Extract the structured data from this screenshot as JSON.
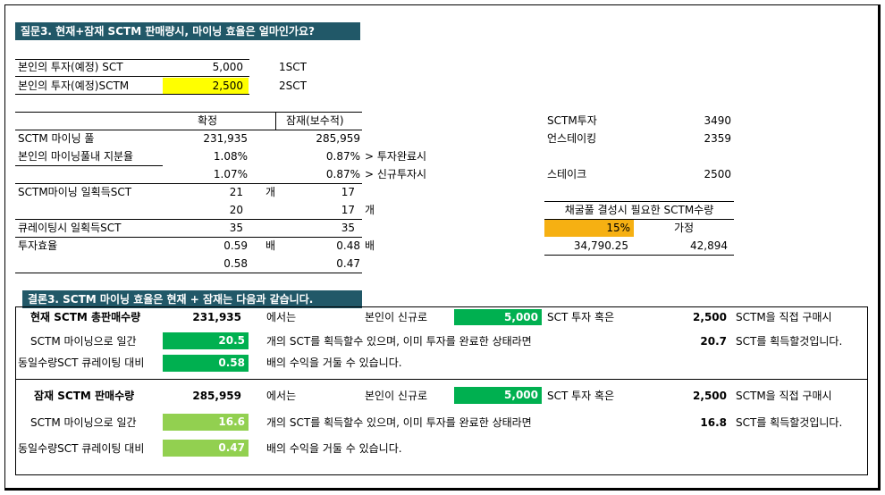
{
  "question": {
    "title": "질문3. 현재+잠재 SCTM 판매량시, 마이닝 효율은 얼마인가요?"
  },
  "investment": {
    "row1": {
      "label": "본인의 투자(예정) SCT",
      "value": "5,000",
      "unit": "1SCT"
    },
    "row2": {
      "label": "본인의 투자(예정)SCTM",
      "value": "2,500",
      "unit": "2SCT"
    }
  },
  "table": {
    "header_confirmed": "확정",
    "header_potential": "잠재(보수적)",
    "rows": {
      "pool": {
        "label": "SCTM 마이닝 풀",
        "confirmed": "231,935",
        "potential": "285,959"
      },
      "share": {
        "label": "본인의 마이닝풀내 지분율",
        "confirmed": "1.08%",
        "potential": "0.87%",
        "note": "> 투자완료시"
      },
      "share2": {
        "confirmed": "1.07%",
        "potential": "0.87%",
        "note": "> 신규투자시"
      },
      "daily": {
        "label": "SCTM마이닝 일획득SCT",
        "confirmed": "21",
        "unit": "개",
        "potential": "17"
      },
      "daily2": {
        "confirmed": "20",
        "potential": "17",
        "unit": "개"
      },
      "curating": {
        "label": "큐레이팅시 일획득SCT",
        "confirmed": "35",
        "potential": "35"
      },
      "efficiency": {
        "label": "투자효율",
        "confirmed": "0.59",
        "unit": "배",
        "potential": "0.48",
        "unit2": "배"
      },
      "efficiency2": {
        "confirmed": "0.58",
        "potential": "0.47"
      }
    }
  },
  "side": {
    "sctm_invest": {
      "label": "SCTM투자",
      "value": "3490"
    },
    "unstaking": {
      "label": "언스테이킹",
      "value": "2359"
    },
    "stake": {
      "label": "스테이크",
      "value": "2500"
    },
    "required": {
      "title": "채굴풀 결성시 필요한 SCTM수량",
      "pct": "15%",
      "assume": "가정",
      "v1": "34,790.25",
      "v2": "42,894"
    }
  },
  "conclusion": {
    "title": "결론3. SCTM 마이닝 효율은 현재 + 잠재는 다음과 같습니다.",
    "current": {
      "label": "현재 SCTM 총판매수량",
      "value": "231,935",
      "where": "에서는",
      "new_label": "본인이 신규로",
      "new_value": "5,000",
      "sct_or": "SCT 투자 혹은",
      "sctm_value": "2,500",
      "direct": "SCTM을 직접 구매시",
      "daily_label": "SCTM 마이닝으로 일간",
      "daily_value": "20.5",
      "daily_text": "개의 SCT를 획득할수 있으며, 이미 투자를 완료한 상태라면",
      "done_value": "20.7",
      "done_text": "SCT를 획득할것입니다.",
      "cur_label": "동일수량SCT 큐레이팅 대비",
      "cur_value": "0.58",
      "cur_text": "배의 수익을 거둘 수 있습니다."
    },
    "potential": {
      "label": "잠재 SCTM 판매수량",
      "value": "285,959",
      "where": "에서는",
      "new_label": "본인이 신규로",
      "new_value": "5,000",
      "sct_or": "SCT 투자 혹은",
      "sctm_value": "2,500",
      "direct": "SCTM을 직접 구매시",
      "daily_label": "SCTM 마이닝으로 일간",
      "daily_value": "16.6",
      "daily_text": "개의 SCT를 획득할수 있으며, 이미 투자를 완료한 상태라면",
      "done_value": "16.8",
      "done_text": "SCT를 획득할것입니다.",
      "cur_label": "동일수량SCT 큐레이팅 대비",
      "cur_value": "0.47",
      "cur_text": "배의 수익을 거둘 수 있습니다."
    }
  }
}
